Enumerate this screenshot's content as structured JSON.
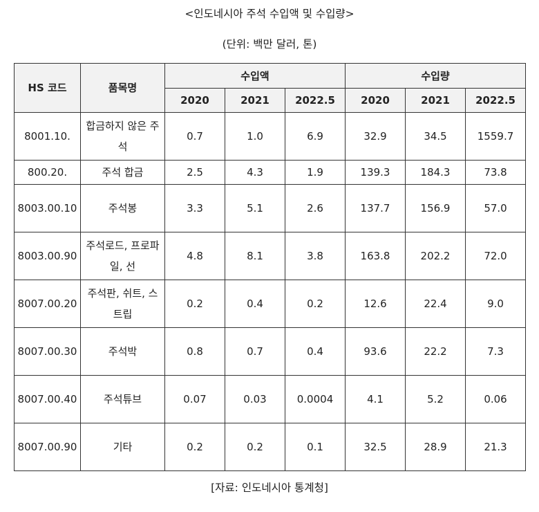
{
  "title": "<인도네시아 주석 수입액 및 수입량>",
  "unit": "(단위: 백만 달러, 톤)",
  "headers": {
    "hs_code": "HS 코드",
    "item": "품목명",
    "value_group": "수입액",
    "volume_group": "수입량",
    "years": [
      "2020",
      "2021",
      "2022.5"
    ]
  },
  "rows": [
    {
      "code": "8001.10.",
      "item": "합금하지 않은 주석",
      "value": [
        "0.7",
        "1.0",
        "6.9"
      ],
      "volume": [
        "32.9",
        "34.5",
        "1559.7"
      ]
    },
    {
      "code": "800.20.",
      "item": "주석 합금",
      "value": [
        "2.5",
        "4.3",
        "1.9"
      ],
      "volume": [
        "139.3",
        "184.3",
        "73.8"
      ]
    },
    {
      "code": "8003.00.10",
      "item": "주석봉",
      "value": [
        "3.3",
        "5.1",
        "2.6"
      ],
      "volume": [
        "137.7",
        "156.9",
        "57.0"
      ]
    },
    {
      "code": "8003.00.90",
      "item": "주석로드, 프로파일, 선",
      "value": [
        "4.8",
        "8.1",
        "3.8"
      ],
      "volume": [
        "163.8",
        "202.2",
        "72.0"
      ]
    },
    {
      "code": "8007.00.20",
      "item": "주석판, 쉬트, 스트립",
      "value": [
        "0.2",
        "0.4",
        "0.2"
      ],
      "volume": [
        "12.6",
        "22.4",
        "9.0"
      ]
    },
    {
      "code": "8007.00.30",
      "item": "주석박",
      "value": [
        "0.8",
        "0.7",
        "0.4"
      ],
      "volume": [
        "93.6",
        "22.2",
        "7.3"
      ]
    },
    {
      "code": "8007.00.40",
      "item": "주석튜브",
      "value": [
        "0.07",
        "0.03",
        "0.0004"
      ],
      "volume": [
        "4.1",
        "5.2",
        "0.06"
      ]
    },
    {
      "code": "8007.00.90",
      "item": "기타",
      "value": [
        "0.2",
        "0.2",
        "0.1"
      ],
      "volume": [
        "32.5",
        "28.9",
        "21.3"
      ]
    }
  ],
  "source": "[자료:  인도네시아 통계청]"
}
